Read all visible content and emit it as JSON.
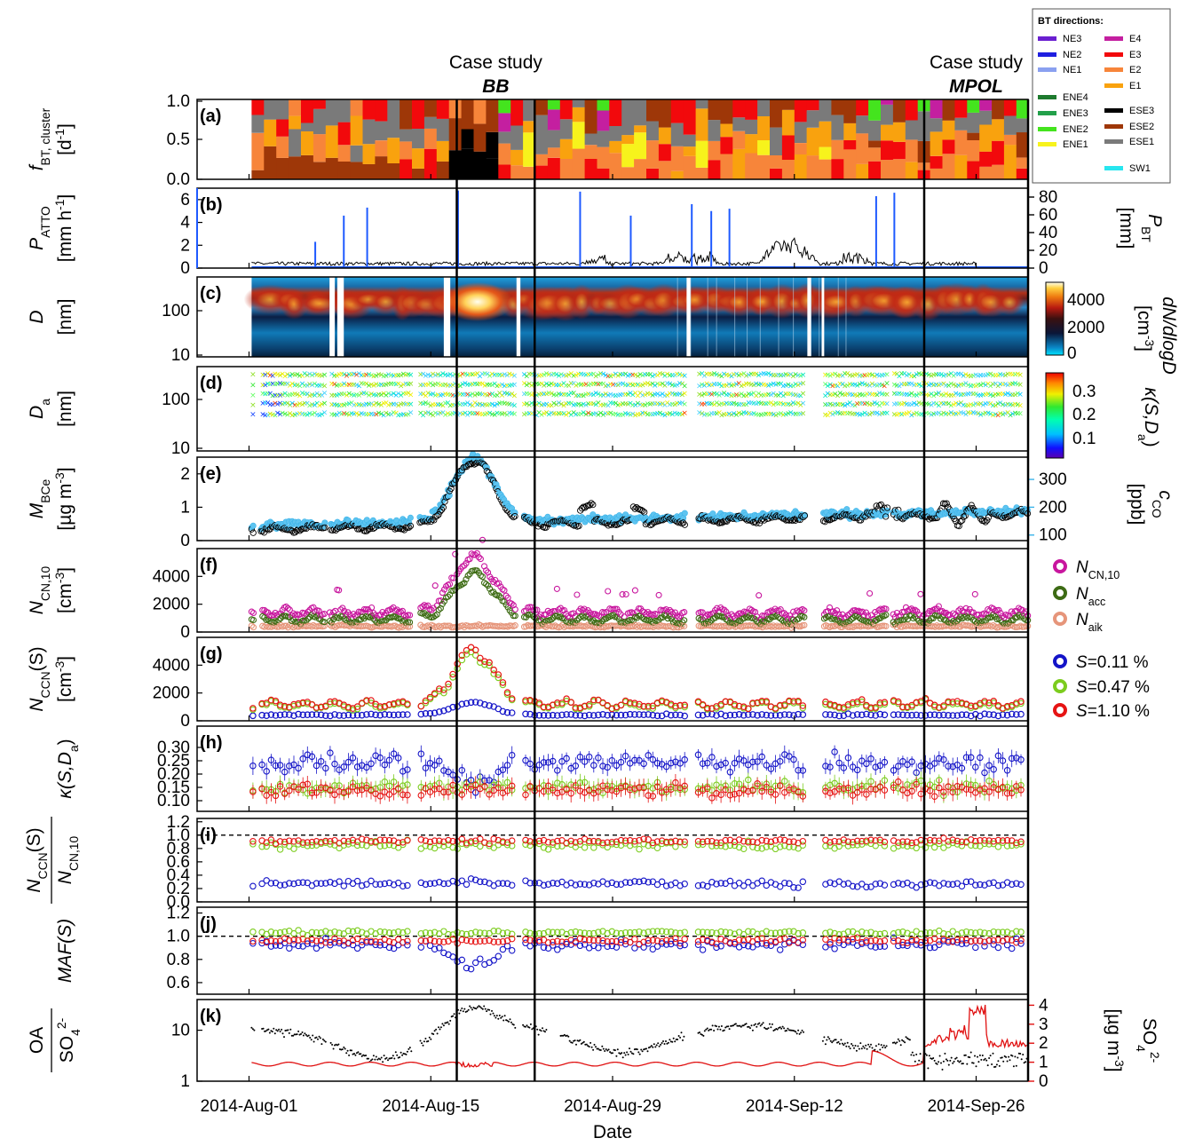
{
  "chart_data": {
    "type": "multi-panel time series",
    "xlabel": "Date",
    "x_ticks": [
      "2014-Aug-01",
      "2014-Aug-15",
      "2014-Aug-29",
      "2014-Sep-12",
      "2014-Sep-26"
    ],
    "x_range": [
      "2014-Jul-28",
      "2014-Sep-30"
    ],
    "case_studies": [
      {
        "label": "Case study",
        "name": "BB",
        "start": "2014-Aug-17",
        "end": "2014-Aug-23"
      },
      {
        "label": "Case study",
        "name": "MPOL",
        "start": "2014-Sep-22",
        "end": "2014-Sep-30"
      }
    ],
    "panels": [
      {
        "id": "(a)",
        "ylabel_main": "f",
        "ylabel_sub": "BT, cluster",
        "ylabel_unit": "[d",
        "ylabel_unit_sup": "-1",
        "ylabel_unit_end": "]",
        "y_ticks": [
          "1.0",
          "0.5",
          "0.0"
        ],
        "ylim": [
          0,
          1
        ],
        "legend_title": "BT directions:",
        "legend": [
          {
            "name": "NE3",
            "color": "#6a1fd0"
          },
          {
            "name": "NE2",
            "color": "#1f1fe0"
          },
          {
            "name": "NE1",
            "color": "#8aa0f0"
          },
          {
            "name": "ENE4",
            "color": "#1e7a2e"
          },
          {
            "name": "ENE3",
            "color": "#22a04a"
          },
          {
            "name": "ENE2",
            "color": "#44e41e"
          },
          {
            "name": "ENE1",
            "color": "#f7f31c"
          },
          {
            "name": "E4",
            "color": "#c41fa0"
          },
          {
            "name": "E3",
            "color": "#f2090c"
          },
          {
            "name": "E2",
            "color": "#f7853a"
          },
          {
            "name": "E1",
            "color": "#f9a20e"
          },
          {
            "name": "ESE3",
            "color": "#000000"
          },
          {
            "name": "ESE2",
            "color": "#9e3708"
          },
          {
            "name": "ESE1",
            "color": "#7a7a7a"
          },
          {
            "name": "SW1",
            "color": "#27e6ef"
          }
        ]
      },
      {
        "id": "(b)",
        "ylabel_main": "P",
        "ylabel_sub": "ATTO",
        "ylabel_unit": "[mm h",
        "ylabel_unit_sup": "-1",
        "ylabel_unit_end": "]",
        "y_ticks": [
          "6",
          "4",
          "2",
          "0"
        ],
        "ylim": [
          0,
          7
        ],
        "right_ylabel_main": "P",
        "right_ylabel_sub": "BT",
        "right_ylabel_unit": "[mm]",
        "right_ticks": [
          "80",
          "60",
          "40",
          "20",
          "0"
        ],
        "right_ylim": [
          0,
          90
        ]
      },
      {
        "id": "(c)",
        "ylabel_main": "D",
        "ylabel_unit": "[nm]",
        "y_ticks": [
          "100",
          "10"
        ],
        "scale": "log",
        "colorbar_label": "dN/dlogD",
        "colorbar_unit": "[cm",
        "colorbar_unit_sup": "-3",
        "colorbar_unit_end": "]",
        "colorbar_ticks": [
          "4000",
          "2000",
          "0"
        ]
      },
      {
        "id": "(d)",
        "ylabel_main": "D",
        "ylabel_sub": "a",
        "ylabel_unit": "[nm]",
        "y_ticks": [
          "100",
          "10"
        ],
        "scale": "log",
        "colorbar_label": "κ(S,D",
        "colorbar_label_sub": "a",
        "colorbar_label_end": ")",
        "colorbar_ticks": [
          "0.3",
          "0.2",
          "0.1"
        ]
      },
      {
        "id": "(e)",
        "ylabel_main": "M",
        "ylabel_sub": "BCe",
        "ylabel_unit": "[µg m",
        "ylabel_unit_sup": "-3",
        "ylabel_unit_end": "]",
        "y_ticks": [
          "2",
          "1",
          "0"
        ],
        "ylim": [
          0,
          2.5
        ],
        "right_ylabel_main": "c",
        "right_ylabel_sub": "CO",
        "right_ylabel_unit": "[ppb]",
        "right_ticks": [
          "300",
          "200",
          "100"
        ],
        "right_ylim": [
          80,
          380
        ],
        "right_color": "#3cb4ea"
      },
      {
        "id": "(f)",
        "ylabel_main": "N",
        "ylabel_sub": "CN,10",
        "ylabel_unit": "[cm",
        "ylabel_unit_sup": "-3",
        "ylabel_unit_end": "]",
        "y_ticks": [
          "4000",
          "2000",
          "0"
        ],
        "ylim": [
          0,
          6000
        ],
        "legend": [
          {
            "name": "N",
            "sub": "CN,10",
            "color": "#c8169e"
          },
          {
            "name": "N",
            "sub": "acc",
            "color": "#3d6b14"
          },
          {
            "name": "N",
            "sub": "aik",
            "color": "#e6957a"
          }
        ]
      },
      {
        "id": "(g)",
        "ylabel_main": "N",
        "ylabel_sub": "CCN",
        "ylabel_end": "(S)",
        "ylabel_unit": "[cm",
        "ylabel_unit_sup": "-3",
        "ylabel_unit_end": "]",
        "y_ticks": [
          "4000",
          "2000",
          "0"
        ],
        "ylim": [
          0,
          6000
        ],
        "legend": [
          {
            "name": "S",
            "value": "=0.11 %",
            "color": "#1414c8"
          },
          {
            "name": "S",
            "value": "=0.47 %",
            "color": "#7ccc1e"
          },
          {
            "name": "S",
            "value": "=1.10 %",
            "color": "#e61414"
          }
        ]
      },
      {
        "id": "(h)",
        "ylabel_main": "κ(S,D",
        "ylabel_sub": "a",
        "ylabel_end": ")",
        "y_ticks": [
          "0.30",
          "0.25",
          "0.20",
          "0.15",
          "0.10"
        ],
        "ylim": [
          0.06,
          0.38
        ]
      },
      {
        "id": "(i)",
        "ylabel_num": "N",
        "ylabel_num_sub": "CCN",
        "ylabel_num_end": "(S)",
        "ylabel_den": "N",
        "ylabel_den_sub": "CN,10",
        "y_ticks": [
          "1.2",
          "1.0",
          "0.8",
          "0.6",
          "0.4",
          "0.2",
          "0.0"
        ],
        "ylim": [
          0,
          1.25
        ],
        "reference_line": 1.0
      },
      {
        "id": "(j)",
        "ylabel_main": "MAF(S)",
        "y_ticks": [
          "1.2",
          "1.0",
          "0.8",
          "0.6"
        ],
        "ylim": [
          0.5,
          1.25
        ],
        "reference_line": 1.0
      },
      {
        "id": "(k)",
        "ylabel_num": "OA",
        "ylabel_den": "SO",
        "ylabel_den_sub": "4",
        "ylabel_den_sup": "2-",
        "y_ticks": [
          "10",
          "1"
        ],
        "scale": "log",
        "ylim": [
          1,
          40
        ],
        "right_ylabel_main": "SO",
        "right_ylabel_sub": "4",
        "right_ylabel_sup": "2-",
        "right_ylabel_unit": "[µg m",
        "right_ylabel_unit_sup": "-3",
        "right_ylabel_unit_end": "]",
        "right_ticks": [
          "4",
          "3",
          "2",
          "1",
          "0"
        ],
        "right_ylim": [
          0,
          4.3
        ],
        "right_color": "#e01010"
      }
    ]
  }
}
